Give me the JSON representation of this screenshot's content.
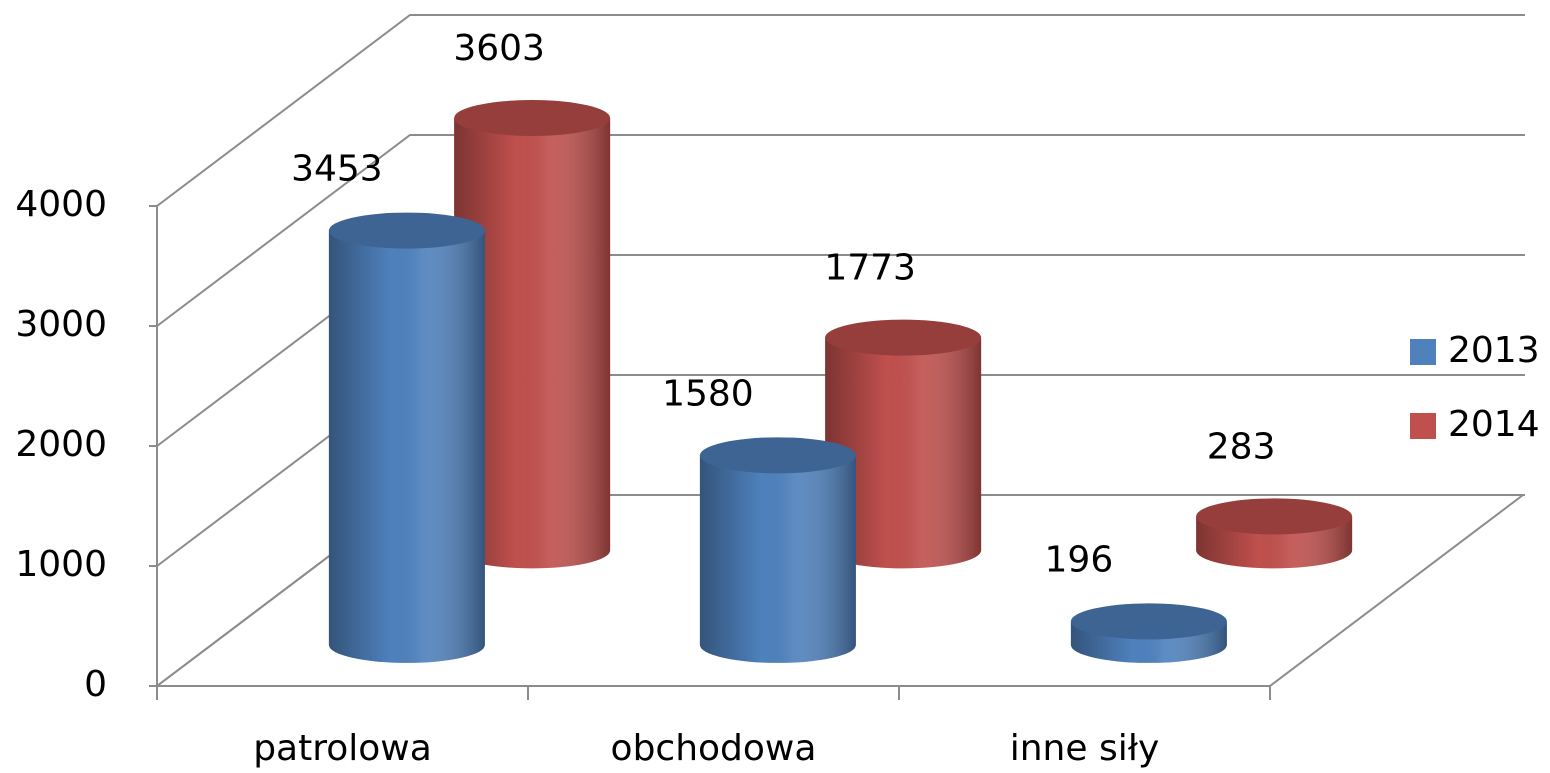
{
  "chart_data": {
    "type": "bar3d",
    "categories": [
      "patrolowa",
      "obchodowa",
      "inne siły"
    ],
    "series": [
      {
        "name": "2013",
        "color": "#4f81bd",
        "values": [
          3453,
          1580,
          196
        ]
      },
      {
        "name": "2014",
        "color": "#c0504d",
        "values": [
          3603,
          1773,
          283
        ]
      }
    ],
    "ylim": [
      0,
      4000
    ],
    "yticks": [
      0,
      1000,
      2000,
      3000,
      4000
    ],
    "grid": true,
    "legend": "right"
  }
}
